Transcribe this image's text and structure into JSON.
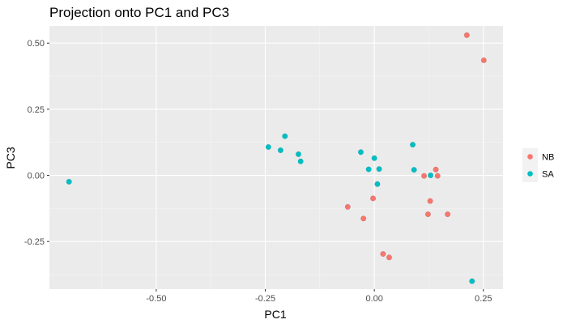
{
  "chart_data": {
    "type": "scatter",
    "title": "Projection onto PC1 and PC3",
    "xlabel": "PC1",
    "ylabel": "PC3",
    "xlim": [
      -0.745,
      0.295
    ],
    "ylim": [
      -0.43,
      0.565
    ],
    "x_ticks": [
      {
        "value": -0.5,
        "label": "-0.50"
      },
      {
        "value": -0.25,
        "label": "-0.25"
      },
      {
        "value": 0.0,
        "label": "0.00"
      },
      {
        "value": 0.25,
        "label": "0.25"
      }
    ],
    "y_ticks": [
      {
        "value": 0.5,
        "label": "0.50"
      },
      {
        "value": 0.25,
        "label": "0.25"
      },
      {
        "value": 0.0,
        "label": "0.00"
      },
      {
        "value": -0.25,
        "label": "-0.25"
      }
    ],
    "grid": true,
    "legend_position": "right",
    "series": [
      {
        "name": "NB",
        "color": "#F8766D",
        "points": [
          {
            "x": 0.212,
            "y": 0.53
          },
          {
            "x": 0.251,
            "y": 0.435
          },
          {
            "x": 0.141,
            "y": 0.022
          },
          {
            "x": 0.114,
            "y": -0.002
          },
          {
            "x": 0.145,
            "y": -0.002
          },
          {
            "x": -0.003,
            "y": -0.087
          },
          {
            "x": 0.128,
            "y": -0.097
          },
          {
            "x": -0.061,
            "y": -0.119
          },
          {
            "x": 0.123,
            "y": -0.147
          },
          {
            "x": 0.168,
            "y": -0.147
          },
          {
            "x": -0.025,
            "y": -0.163
          },
          {
            "x": 0.02,
            "y": -0.297
          },
          {
            "x": 0.034,
            "y": -0.31
          }
        ]
      },
      {
        "name": "SA",
        "color": "#00BFC4",
        "points": [
          {
            "x": -0.7,
            "y": -0.024
          },
          {
            "x": -0.243,
            "y": 0.107
          },
          {
            "x": -0.215,
            "y": 0.095
          },
          {
            "x": -0.205,
            "y": 0.148
          },
          {
            "x": -0.174,
            "y": 0.08
          },
          {
            "x": -0.169,
            "y": 0.053
          },
          {
            "x": -0.031,
            "y": 0.088
          },
          {
            "x": -0.013,
            "y": 0.023
          },
          {
            "x": 0.0,
            "y": 0.065
          },
          {
            "x": 0.011,
            "y": 0.024
          },
          {
            "x": 0.007,
            "y": -0.033
          },
          {
            "x": 0.088,
            "y": 0.116
          },
          {
            "x": 0.091,
            "y": 0.021
          },
          {
            "x": 0.129,
            "y": 0.0
          },
          {
            "x": 0.224,
            "y": -0.4
          }
        ]
      }
    ]
  }
}
